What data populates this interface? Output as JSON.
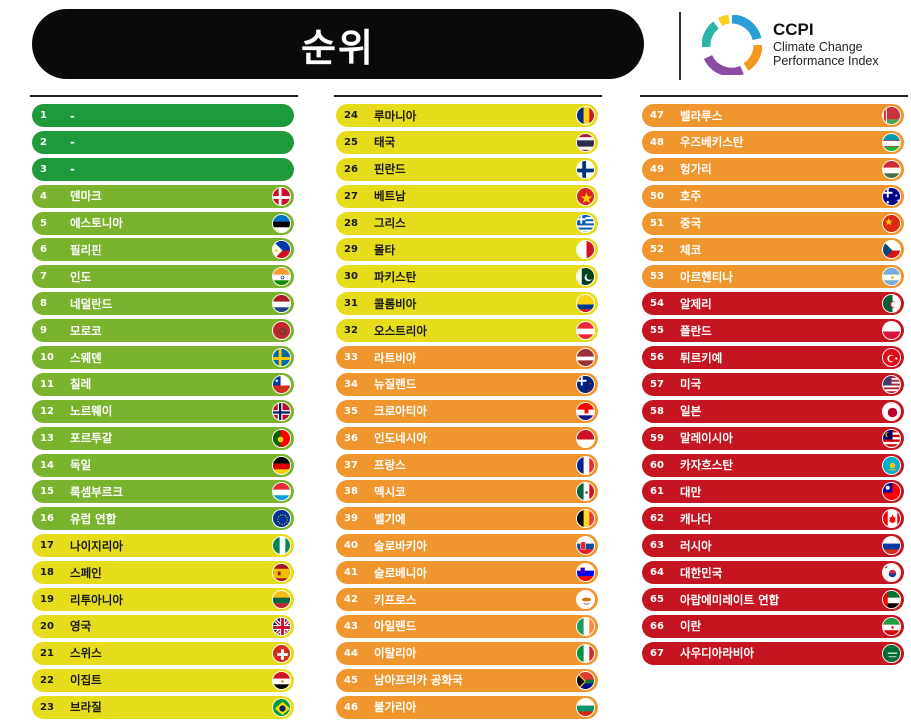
{
  "header": {
    "title": "순위",
    "brand_name": "CCPI",
    "brand_line1": "Climate Change",
    "brand_line2": "Performance Index"
  },
  "colors": {
    "very_high": "#1f9a3a",
    "high": "#7ab32e",
    "medium": "#e6dc1c",
    "low": "#ef962e",
    "very_low": "#c41520"
  },
  "rows": [
    {
      "rank": "1",
      "name": "-",
      "tier": "very_high",
      "flag": "none"
    },
    {
      "rank": "2",
      "name": "-",
      "tier": "very_high",
      "flag": "none"
    },
    {
      "rank": "3",
      "name": "-",
      "tier": "very_high",
      "flag": "none"
    },
    {
      "rank": "4",
      "name": "덴마크",
      "tier": "high",
      "flag": "denmark-flag-icon"
    },
    {
      "rank": "5",
      "name": "에스토니아",
      "tier": "high",
      "flag": "estonia-flag-icon"
    },
    {
      "rank": "6",
      "name": "필리핀",
      "tier": "high",
      "flag": "philippines-flag-icon"
    },
    {
      "rank": "7",
      "name": "인도",
      "tier": "high",
      "flag": "india-flag-icon"
    },
    {
      "rank": "8",
      "name": "네덜란드",
      "tier": "high",
      "flag": "netherlands-flag-icon"
    },
    {
      "rank": "9",
      "name": "모로코",
      "tier": "high",
      "flag": "morocco-flag-icon"
    },
    {
      "rank": "10",
      "name": "스웨덴",
      "tier": "high",
      "flag": "sweden-flag-icon"
    },
    {
      "rank": "11",
      "name": "칠레",
      "tier": "high",
      "flag": "chile-flag-icon"
    },
    {
      "rank": "12",
      "name": "노르웨이",
      "tier": "high",
      "flag": "norway-flag-icon"
    },
    {
      "rank": "13",
      "name": "포르투갈",
      "tier": "high",
      "flag": "portugal-flag-icon"
    },
    {
      "rank": "14",
      "name": "독일",
      "tier": "high",
      "flag": "germany-flag-icon"
    },
    {
      "rank": "15",
      "name": "룩셈부르크",
      "tier": "high",
      "flag": "luxembourg-flag-icon"
    },
    {
      "rank": "16",
      "name": "유럽 연합",
      "tier": "high",
      "flag": "eu-flag-icon"
    },
    {
      "rank": "17",
      "name": "나이지리아",
      "tier": "medium",
      "flag": "nigeria-flag-icon"
    },
    {
      "rank": "18",
      "name": "스페인",
      "tier": "medium",
      "flag": "spain-flag-icon"
    },
    {
      "rank": "19",
      "name": "리투아니아",
      "tier": "medium",
      "flag": "lithuania-flag-icon"
    },
    {
      "rank": "20",
      "name": "영국",
      "tier": "medium",
      "flag": "uk-flag-icon"
    },
    {
      "rank": "21",
      "name": "스위스",
      "tier": "medium",
      "flag": "switzerland-flag-icon"
    },
    {
      "rank": "22",
      "name": "이집트",
      "tier": "medium",
      "flag": "egypt-flag-icon"
    },
    {
      "rank": "23",
      "name": "브라질",
      "tier": "medium",
      "flag": "brazil-flag-icon"
    },
    {
      "rank": "24",
      "name": "루마니아",
      "tier": "medium",
      "flag": "romania-flag-icon"
    },
    {
      "rank": "25",
      "name": "태국",
      "tier": "medium",
      "flag": "thailand-flag-icon"
    },
    {
      "rank": "26",
      "name": "핀란드",
      "tier": "medium",
      "flag": "finland-flag-icon"
    },
    {
      "rank": "27",
      "name": "베트남",
      "tier": "medium",
      "flag": "vietnam-flag-icon"
    },
    {
      "rank": "28",
      "name": "그리스",
      "tier": "medium",
      "flag": "greece-flag-icon"
    },
    {
      "rank": "29",
      "name": "몰타",
      "tier": "medium",
      "flag": "malta-flag-icon"
    },
    {
      "rank": "30",
      "name": "파키스탄",
      "tier": "medium",
      "flag": "pakistan-flag-icon"
    },
    {
      "rank": "31",
      "name": "콜롬비아",
      "tier": "medium",
      "flag": "colombia-flag-icon"
    },
    {
      "rank": "32",
      "name": "오스트리아",
      "tier": "medium",
      "flag": "austria-flag-icon"
    },
    {
      "rank": "33",
      "name": "라트비아",
      "tier": "low",
      "flag": "latvia-flag-icon"
    },
    {
      "rank": "34",
      "name": "뉴질랜드",
      "tier": "low",
      "flag": "new-zealand-flag-icon"
    },
    {
      "rank": "35",
      "name": "크로아티아",
      "tier": "low",
      "flag": "croatia-flag-icon"
    },
    {
      "rank": "36",
      "name": "인도네시아",
      "tier": "low",
      "flag": "indonesia-flag-icon"
    },
    {
      "rank": "37",
      "name": "프랑스",
      "tier": "low",
      "flag": "france-flag-icon"
    },
    {
      "rank": "38",
      "name": "멕시코",
      "tier": "low",
      "flag": "mexico-flag-icon"
    },
    {
      "rank": "39",
      "name": "벨기에",
      "tier": "low",
      "flag": "belgium-flag-icon"
    },
    {
      "rank": "40",
      "name": "슬로바키아",
      "tier": "low",
      "flag": "slovakia-flag-icon"
    },
    {
      "rank": "41",
      "name": "슬로베니아",
      "tier": "low",
      "flag": "slovenia-flag-icon"
    },
    {
      "rank": "42",
      "name": "키프로스",
      "tier": "low",
      "flag": "cyprus-flag-icon"
    },
    {
      "rank": "43",
      "name": "아일랜드",
      "tier": "low",
      "flag": "ireland-flag-icon"
    },
    {
      "rank": "44",
      "name": "이탈리아",
      "tier": "low",
      "flag": "italy-flag-icon"
    },
    {
      "rank": "45",
      "name": "남아프리카 공화국",
      "tier": "low",
      "flag": "south-africa-flag-icon"
    },
    {
      "rank": "46",
      "name": "불가리아",
      "tier": "low",
      "flag": "bulgaria-flag-icon"
    },
    {
      "rank": "47",
      "name": "벨라루스",
      "tier": "low",
      "flag": "belarus-flag-icon"
    },
    {
      "rank": "48",
      "name": "우즈베키스탄",
      "tier": "low",
      "flag": "uzbekistan-flag-icon"
    },
    {
      "rank": "49",
      "name": "헝가리",
      "tier": "low",
      "flag": "hungary-flag-icon"
    },
    {
      "rank": "50",
      "name": "호주",
      "tier": "low",
      "flag": "australia-flag-icon"
    },
    {
      "rank": "51",
      "name": "중국",
      "tier": "low",
      "flag": "china-flag-icon"
    },
    {
      "rank": "52",
      "name": "체코",
      "tier": "low",
      "flag": "czechia-flag-icon"
    },
    {
      "rank": "53",
      "name": "아르헨티나",
      "tier": "low",
      "flag": "argentina-flag-icon"
    },
    {
      "rank": "54",
      "name": "알제리",
      "tier": "very_low",
      "flag": "algeria-flag-icon"
    },
    {
      "rank": "55",
      "name": "폴란드",
      "tier": "very_low",
      "flag": "poland-flag-icon"
    },
    {
      "rank": "56",
      "name": "튀르키예",
      "tier": "very_low",
      "flag": "turkey-flag-icon"
    },
    {
      "rank": "57",
      "name": "미국",
      "tier": "very_low",
      "flag": "usa-flag-icon"
    },
    {
      "rank": "58",
      "name": "일본",
      "tier": "very_low",
      "flag": "japan-flag-icon"
    },
    {
      "rank": "59",
      "name": "말레이시아",
      "tier": "very_low",
      "flag": "malaysia-flag-icon"
    },
    {
      "rank": "60",
      "name": "카자흐스탄",
      "tier": "very_low",
      "flag": "kazakhstan-flag-icon"
    },
    {
      "rank": "61",
      "name": "대만",
      "tier": "very_low",
      "flag": "taiwan-flag-icon"
    },
    {
      "rank": "62",
      "name": "캐나다",
      "tier": "very_low",
      "flag": "canada-flag-icon"
    },
    {
      "rank": "63",
      "name": "러시아",
      "tier": "very_low",
      "flag": "russia-flag-icon"
    },
    {
      "rank": "64",
      "name": "대한민국",
      "tier": "very_low",
      "flag": "south-korea-flag-icon"
    },
    {
      "rank": "65",
      "name": "아랍에미레이트 연합",
      "tier": "very_low",
      "flag": "uae-flag-icon"
    },
    {
      "rank": "66",
      "name": "이란",
      "tier": "very_low",
      "flag": "iran-flag-icon"
    },
    {
      "rank": "67",
      "name": "사우디아라비아",
      "tier": "very_low",
      "flag": "saudi-arabia-flag-icon"
    }
  ]
}
